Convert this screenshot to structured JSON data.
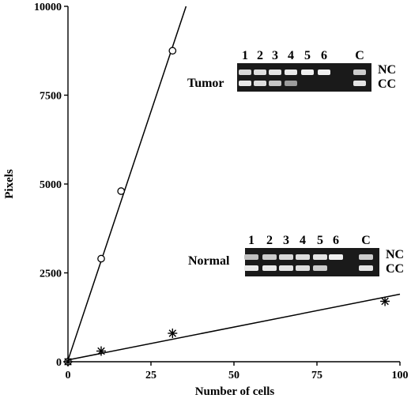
{
  "chart_data": {
    "type": "scatter",
    "xlabel": "Number of cells",
    "ylabel": "Pixels",
    "xlim": [
      0,
      100
    ],
    "ylim": [
      0,
      10000
    ],
    "x_ticks": [
      0,
      25,
      50,
      75,
      100
    ],
    "y_ticks": [
      0,
      2500,
      5000,
      7500,
      10000
    ],
    "grid": false,
    "series": [
      {
        "marker": "circle",
        "x": [
          0,
          10,
          16,
          31.5
        ],
        "y": [
          0,
          2900,
          4800,
          8750
        ],
        "fit": {
          "slope": 280,
          "intercept": 40
        }
      },
      {
        "marker": "asterisk",
        "x": [
          0,
          10,
          31.5,
          95.5
        ],
        "y": [
          0,
          300,
          800,
          1700
        ],
        "fit": {
          "slope": 18.5,
          "intercept": 50
        }
      }
    ],
    "insets": [
      {
        "label": "Tumor",
        "lanes": [
          "1",
          "2",
          "3",
          "4",
          "5",
          "6",
          "C"
        ],
        "rows": [
          "NC",
          "CC"
        ],
        "cc_intensity": [
          0.95,
          0.85,
          0.65,
          0.3,
          0.0,
          0.0,
          0.9
        ],
        "nc_intensity": [
          0.8,
          0.85,
          0.9,
          0.95,
          1.0,
          1.0,
          0.7
        ]
      },
      {
        "label": "Normal",
        "lanes": [
          "1",
          "2",
          "3",
          "4",
          "5",
          "6",
          "C"
        ],
        "rows": [
          "NC",
          "CC"
        ],
        "cc_intensity": [
          0.95,
          0.95,
          0.9,
          0.85,
          0.7,
          0.0,
          0.9
        ],
        "nc_intensity": [
          0.6,
          0.7,
          0.8,
          0.85,
          0.9,
          1.0,
          0.7
        ]
      }
    ]
  }
}
